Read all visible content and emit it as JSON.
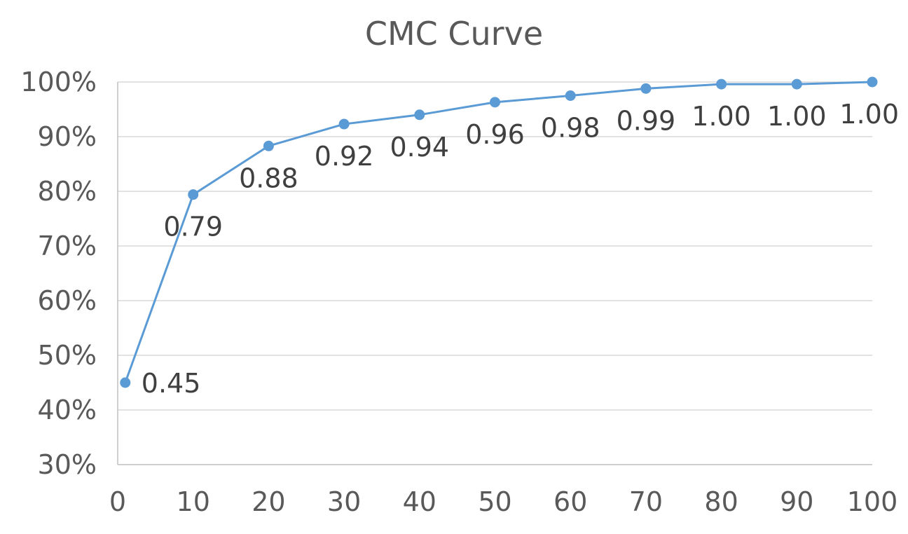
{
  "chart_data": {
    "type": "line",
    "title": "CMC Curve",
    "xlabel": "",
    "ylabel": "",
    "x_ticks": [
      "0",
      "10",
      "20",
      "30",
      "40",
      "50",
      "60",
      "70",
      "80",
      "90",
      "100"
    ],
    "xlim": [
      0,
      100
    ],
    "y_ticks": [
      "30%",
      "40%",
      "50%",
      "60%",
      "70%",
      "80%",
      "90%",
      "100%"
    ],
    "ylim": [
      0.3,
      1.0
    ],
    "grid": true,
    "legend": "none",
    "series": [
      {
        "color": "#5b9bd5",
        "x": [
          1,
          10,
          20,
          30,
          40,
          50,
          60,
          70,
          80,
          90,
          100
        ],
        "y": [
          0.45,
          0.794,
          0.883,
          0.923,
          0.94,
          0.963,
          0.975,
          0.988,
          0.996,
          0.996,
          1.0
        ],
        "data_labels": [
          "0.45",
          "0.79",
          "0.88",
          "0.92",
          "0.94",
          "0.96",
          "0.98",
          "0.99",
          "1.00",
          "1.00",
          "1.00"
        ]
      }
    ]
  }
}
